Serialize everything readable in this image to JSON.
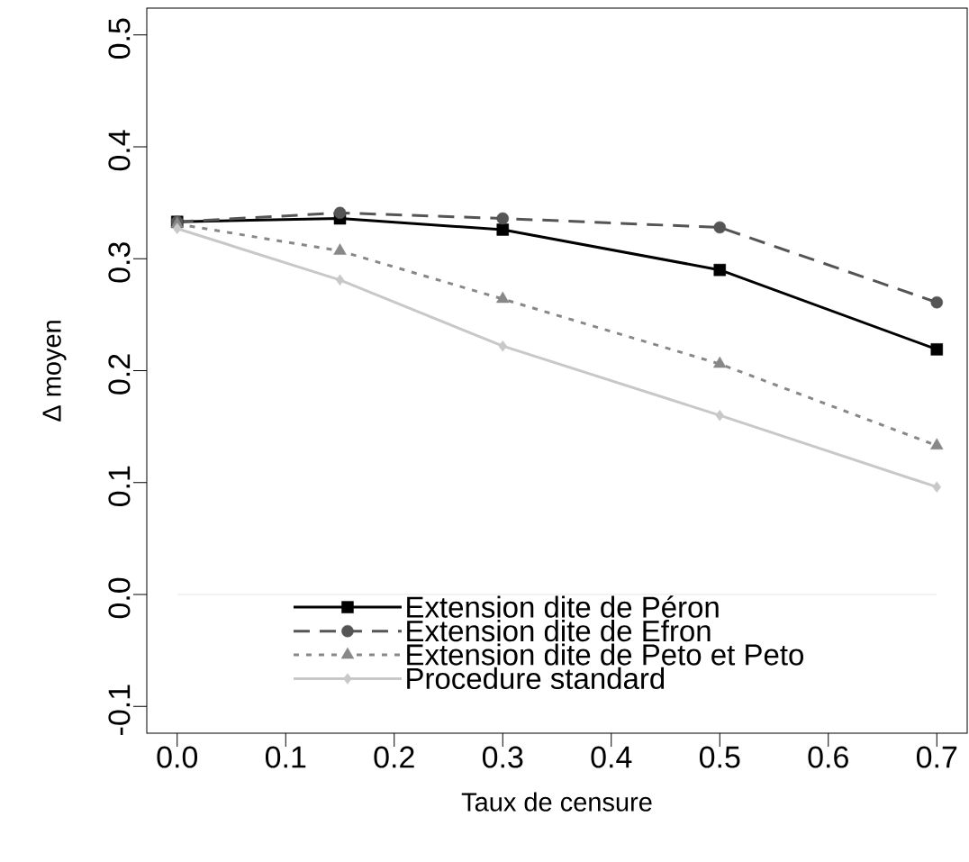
{
  "chart_data": {
    "type": "line",
    "xlabel": "Taux de censure",
    "ylabel": "Δ moyen",
    "x": [
      0,
      0.15,
      0.3,
      0.5,
      0.7
    ],
    "series": [
      {
        "name": "Extension dite de Péron",
        "color": "#000000",
        "marker": "square",
        "line_style": "solid",
        "values": [
          0.333,
          0.336,
          0.326,
          0.29,
          0.219
        ]
      },
      {
        "name": "Extension dite de Efron",
        "color": "#555555",
        "marker": "circle",
        "line_style": "dashed",
        "values": [
          0.333,
          0.341,
          0.336,
          0.328,
          0.261
        ]
      },
      {
        "name": "Extension dite de Peto et Peto",
        "color": "#888888",
        "marker": "triangle",
        "line_style": "dotted",
        "values": [
          0.331,
          0.307,
          0.264,
          0.206,
          0.133
        ]
      },
      {
        "name": "Procedure standard",
        "color": "#c8c8c8",
        "marker": "diamond",
        "line_style": "solid",
        "values": [
          0.327,
          0.281,
          0.222,
          0.16,
          0.096
        ]
      }
    ],
    "xlim": [
      -0.028,
      0.728
    ],
    "ylim": [
      -0.124,
      0.524
    ],
    "xticks": [
      {
        "value": 0,
        "label": "0.0"
      },
      0.1,
      0.2,
      0.3,
      0.4,
      0.5,
      0.6,
      0.7
    ],
    "yticks": [
      -0.1,
      {
        "value": 0,
        "label": "0.0"
      },
      0.1,
      0.2,
      0.3,
      0.4,
      0.5
    ],
    "ref_lines": [
      {
        "axis": "y",
        "value": 0,
        "color": "#e0e0e0"
      }
    ],
    "legend": "bottom"
  }
}
